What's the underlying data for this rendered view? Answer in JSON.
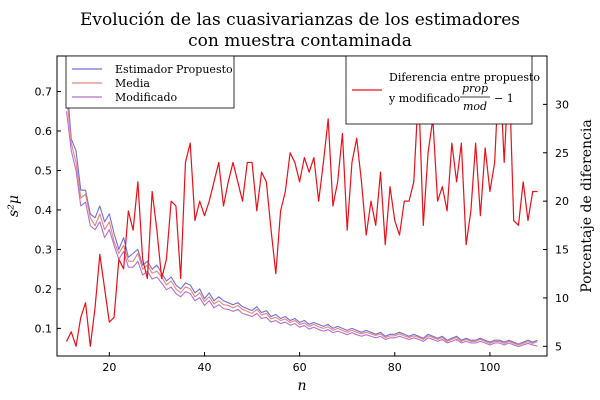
{
  "chart_data": {
    "type": "line",
    "title_line1": "Evolución de las cuasivarianzas de los estimadores",
    "title_line2": "con muestra contaminada",
    "xlabel": "n",
    "ylabel_left": "s²μ",
    "ylabel_right": "Porcentaje de diferencia",
    "xlim": [
      9,
      112
    ],
    "ylim_left": [
      0.03,
      0.79
    ],
    "ylim_right": [
      4.0,
      35.0
    ],
    "xticks": [
      20,
      40,
      60,
      80,
      100
    ],
    "yticks_left": [
      0.1,
      0.2,
      0.3,
      0.4,
      0.5,
      0.6,
      0.7
    ],
    "yticks_right": [
      5,
      10,
      15,
      20,
      25,
      30
    ],
    "legend_left": {
      "position": "top-left",
      "entries": [
        "Estimador Propuesto",
        "Media",
        "Modificado"
      ]
    },
    "legend_right": {
      "position": "top-right",
      "line1": "Diferencia entre propuesto",
      "line2": "y modificado",
      "frac_num": "prop",
      "frac_den": "mod",
      "suffix": "− 1"
    },
    "colors": {
      "propuesto": "#6f6fd9",
      "media": "#e8857a",
      "modificado": "#b571d1",
      "diferencia": "#e8101a"
    },
    "x": [
      11,
      12,
      13,
      14,
      15,
      16,
      17,
      18,
      19,
      20,
      21,
      22,
      23,
      24,
      25,
      26,
      27,
      28,
      29,
      30,
      31,
      32,
      33,
      34,
      35,
      36,
      37,
      38,
      39,
      40,
      41,
      42,
      43,
      44,
      45,
      46,
      47,
      48,
      49,
      50,
      51,
      52,
      53,
      54,
      55,
      56,
      57,
      58,
      59,
      60,
      61,
      62,
      63,
      64,
      65,
      66,
      67,
      68,
      69,
      70,
      71,
      72,
      73,
      74,
      75,
      76,
      77,
      78,
      79,
      80,
      81,
      82,
      83,
      84,
      85,
      86,
      87,
      88,
      89,
      90,
      91,
      92,
      93,
      94,
      95,
      96,
      97,
      98,
      99,
      100,
      101,
      102,
      103,
      104,
      105,
      106,
      107,
      108,
      109,
      110
    ],
    "series": [
      {
        "name": "Estimador Propuesto",
        "axis": "left",
        "values": [
          0.73,
          0.58,
          0.55,
          0.45,
          0.45,
          0.39,
          0.38,
          0.41,
          0.37,
          0.39,
          0.34,
          0.3,
          0.33,
          0.28,
          0.29,
          0.3,
          0.26,
          0.27,
          0.25,
          0.26,
          0.24,
          0.22,
          0.23,
          0.21,
          0.2,
          0.215,
          0.21,
          0.19,
          0.2,
          0.175,
          0.19,
          0.17,
          0.18,
          0.17,
          0.165,
          0.16,
          0.165,
          0.155,
          0.15,
          0.145,
          0.155,
          0.14,
          0.145,
          0.13,
          0.135,
          0.125,
          0.13,
          0.12,
          0.125,
          0.115,
          0.12,
          0.11,
          0.115,
          0.11,
          0.105,
          0.11,
          0.1,
          0.105,
          0.1,
          0.095,
          0.1,
          0.095,
          0.09,
          0.095,
          0.09,
          0.085,
          0.09,
          0.08,
          0.085,
          0.085,
          0.09,
          0.085,
          0.08,
          0.085,
          0.08,
          0.075,
          0.085,
          0.08,
          0.075,
          0.08,
          0.07,
          0.075,
          0.08,
          0.07,
          0.075,
          0.07,
          0.07,
          0.075,
          0.07,
          0.065,
          0.07,
          0.07,
          0.065,
          0.07,
          0.065,
          0.06,
          0.065,
          0.07,
          0.065,
          0.07
        ]
      },
      {
        "name": "Media",
        "axis": "left",
        "values": [
          0.69,
          0.57,
          0.52,
          0.43,
          0.44,
          0.38,
          0.36,
          0.39,
          0.35,
          0.37,
          0.32,
          0.29,
          0.31,
          0.27,
          0.27,
          0.29,
          0.25,
          0.26,
          0.24,
          0.245,
          0.23,
          0.21,
          0.22,
          0.2,
          0.19,
          0.205,
          0.2,
          0.18,
          0.19,
          0.168,
          0.18,
          0.162,
          0.17,
          0.16,
          0.158,
          0.152,
          0.158,
          0.148,
          0.143,
          0.138,
          0.148,
          0.134,
          0.138,
          0.124,
          0.128,
          0.12,
          0.124,
          0.115,
          0.12,
          0.11,
          0.114,
          0.105,
          0.11,
          0.104,
          0.1,
          0.104,
          0.095,
          0.1,
          0.095,
          0.09,
          0.095,
          0.09,
          0.086,
          0.09,
          0.086,
          0.082,
          0.086,
          0.077,
          0.081,
          0.081,
          0.086,
          0.081,
          0.077,
          0.081,
          0.077,
          0.072,
          0.081,
          0.077,
          0.072,
          0.077,
          0.067,
          0.072,
          0.077,
          0.067,
          0.072,
          0.067,
          0.067,
          0.072,
          0.067,
          0.062,
          0.067,
          0.067,
          0.062,
          0.067,
          0.062,
          0.058,
          0.062,
          0.066,
          0.062,
          0.066
        ]
      },
      {
        "name": "Modificado",
        "axis": "left",
        "values": [
          0.65,
          0.55,
          0.5,
          0.41,
          0.42,
          0.36,
          0.35,
          0.37,
          0.33,
          0.35,
          0.31,
          0.275,
          0.295,
          0.255,
          0.255,
          0.27,
          0.235,
          0.245,
          0.225,
          0.23,
          0.215,
          0.198,
          0.205,
          0.188,
          0.18,
          0.193,
          0.188,
          0.17,
          0.178,
          0.158,
          0.17,
          0.152,
          0.16,
          0.15,
          0.148,
          0.143,
          0.148,
          0.138,
          0.134,
          0.13,
          0.138,
          0.125,
          0.128,
          0.116,
          0.12,
          0.112,
          0.116,
          0.108,
          0.112,
          0.103,
          0.107,
          0.098,
          0.103,
          0.097,
          0.093,
          0.097,
          0.089,
          0.093,
          0.089,
          0.084,
          0.089,
          0.084,
          0.08,
          0.084,
          0.08,
          0.076,
          0.08,
          0.072,
          0.076,
          0.076,
          0.08,
          0.076,
          0.072,
          0.076,
          0.072,
          0.067,
          0.076,
          0.072,
          0.067,
          0.072,
          0.063,
          0.067,
          0.072,
          0.063,
          0.067,
          0.063,
          0.063,
          0.067,
          0.063,
          0.058,
          0.063,
          0.063,
          0.058,
          0.063,
          0.058,
          0.054,
          0.058,
          0.062,
          0.058,
          0.055
        ]
      },
      {
        "name": "Diferencia entre propuesto y modificado prop/mod − 1",
        "axis": "right",
        "values": [
          5.5,
          6.5,
          5.0,
          8.0,
          9.5,
          5.0,
          9.0,
          14.5,
          11.0,
          7.5,
          8.0,
          14.0,
          13.0,
          19.0,
          17.0,
          22.0,
          14.0,
          12.0,
          21.0,
          17.0,
          12.0,
          14.0,
          20.0,
          19.5,
          12.0,
          24.0,
          26.0,
          18.0,
          20.0,
          18.5,
          20.0,
          22.0,
          24.0,
          19.5,
          22.0,
          24.0,
          22.0,
          20.0,
          24.0,
          24.0,
          19.0,
          23.0,
          22.0,
          17.0,
          12.5,
          19.0,
          21.0,
          25.0,
          24.0,
          22.0,
          24.5,
          23.0,
          24.5,
          20.0,
          24.0,
          28.5,
          19.5,
          22.0,
          27.0,
          17.0,
          24.0,
          26.5,
          22.0,
          16.5,
          20.0,
          17.5,
          23.0,
          15.5,
          21.5,
          18.0,
          16.5,
          20.0,
          20.0,
          22.0,
          31.5,
          17.5,
          25.0,
          28.5,
          20.0,
          21.5,
          19.0,
          26.0,
          22.0,
          26.0,
          15.5,
          19.0,
          26.0,
          18.5,
          25.5,
          21.0,
          24.0,
          34.5,
          24.0,
          34.0,
          18.0,
          17.5,
          22.0,
          18.0,
          21.0,
          21.0
        ]
      }
    ]
  }
}
